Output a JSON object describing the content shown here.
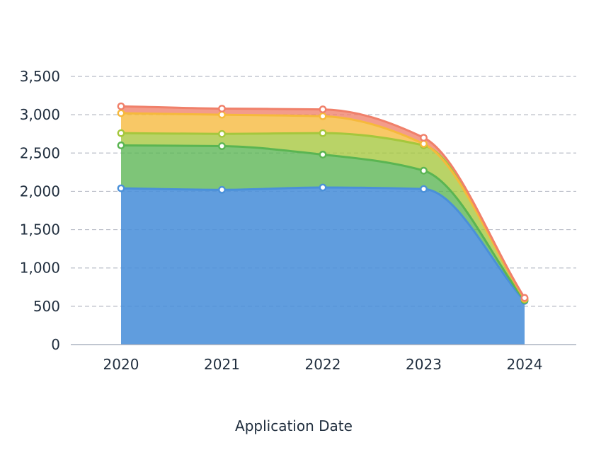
{
  "chart_data": {
    "type": "area",
    "stacked": true,
    "smooth": true,
    "title": "",
    "xlabel": "Application Date",
    "ylabel": "",
    "categories": [
      "2020",
      "2021",
      "2022",
      "2023",
      "2024"
    ],
    "ylim": [
      0,
      3500
    ],
    "yticks": [
      0,
      500,
      1000,
      1500,
      2000,
      2500,
      3000,
      3500
    ],
    "ytick_labels": [
      "0",
      "500",
      "1,000",
      "1,500",
      "2,000",
      "2,500",
      "3,000",
      "3,500"
    ],
    "grid": true,
    "legend": "none",
    "series": [
      {
        "values": [
          2040,
          2020,
          2050,
          2030,
          570
        ],
        "color": "#4a90d9"
      },
      {
        "values": [
          560,
          570,
          430,
          240,
          10
        ],
        "color": "#5ab552"
      },
      {
        "values": [
          160,
          160,
          280,
          330,
          10
        ],
        "color": "#a5c73c"
      },
      {
        "values": [
          260,
          250,
          220,
          20,
          10
        ],
        "color": "#f6b93b"
      },
      {
        "values": [
          90,
          80,
          90,
          80,
          10
        ],
        "color": "#f0806a"
      }
    ]
  }
}
